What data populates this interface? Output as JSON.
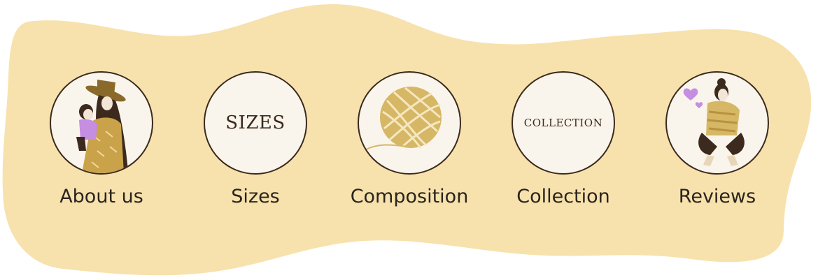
{
  "theme": {
    "blob_color": "#f7e2ad",
    "circle_fill": "#faf5ec",
    "circle_border": "#3b2a1d",
    "mustard": "#c9a24a",
    "yarn": "#d6b765",
    "lilac": "#c58ee0"
  },
  "nav": {
    "items": [
      {
        "id": "about",
        "label": "About us",
        "icon": "mother-and-child-illustration"
      },
      {
        "id": "sizes",
        "label": "Sizes",
        "icon_text": "SIZES"
      },
      {
        "id": "composition",
        "label": "Composition",
        "icon": "yarn-ball-illustration"
      },
      {
        "id": "collection",
        "label": "Collection",
        "icon_text": "COLLECTION"
      },
      {
        "id": "reviews",
        "label": "Reviews",
        "icon": "woman-with-hearts-illustration"
      }
    ]
  }
}
